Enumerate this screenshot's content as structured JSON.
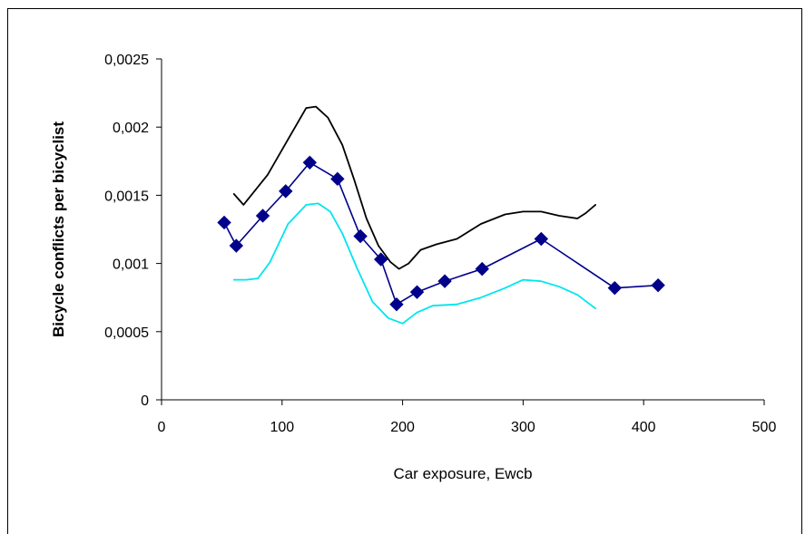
{
  "chart_data": {
    "type": "line",
    "xlabel": "Car exposure, Ewcb",
    "ylabel": "Bicycle conflicts per bicyclist",
    "xlim": [
      0,
      500
    ],
    "ylim": [
      0,
      0.0025
    ],
    "xticks": [
      0,
      100,
      200,
      300,
      400,
      500
    ],
    "xtick_labels": [
      "0",
      "100",
      "200",
      "300",
      "400",
      "500"
    ],
    "yticks": [
      0,
      0.0005,
      0.001,
      0.0015,
      0.002,
      0.0025
    ],
    "ytick_labels": [
      "0",
      "0,0005",
      "0,001",
      "0,0015",
      "0,002",
      "0,0025"
    ],
    "grid": false,
    "legend": false,
    "series": [
      {
        "color": "#000000",
        "marker": "none",
        "x": [
          60,
          68,
          88,
          105,
          120,
          128,
          138,
          150,
          160,
          170,
          180,
          190,
          197,
          205,
          215,
          228,
          245,
          265,
          285,
          300,
          315,
          330,
          345,
          352,
          360
        ],
        "y": [
          0.00151,
          0.00143,
          0.00165,
          0.00191,
          0.00214,
          0.00215,
          0.00207,
          0.00187,
          0.00161,
          0.00133,
          0.00113,
          0.00101,
          0.00096,
          0.001,
          0.0011,
          0.00114,
          0.00118,
          0.00129,
          0.00136,
          0.00138,
          0.00138,
          0.00135,
          0.00133,
          0.00137,
          0.00143
        ]
      },
      {
        "color": "#00008b",
        "marker": "diamond",
        "x": [
          52,
          62,
          84,
          103,
          123,
          146,
          165,
          182,
          195,
          212,
          235,
          266,
          315,
          376,
          412
        ],
        "y": [
          0.0013,
          0.00113,
          0.00135,
          0.00153,
          0.00174,
          0.00162,
          0.0012,
          0.00103,
          0.0007,
          0.00079,
          0.00087,
          0.00096,
          0.00118,
          0.00082,
          0.00084
        ]
      },
      {
        "color": "#00e5ee",
        "marker": "none",
        "x": [
          60,
          70,
          80,
          90,
          105,
          120,
          130,
          140,
          150,
          162,
          175,
          188,
          200,
          212,
          225,
          245,
          265,
          285,
          300,
          315,
          330,
          345,
          360
        ],
        "y": [
          0.00088,
          0.00088,
          0.00089,
          0.00101,
          0.00129,
          0.00143,
          0.00144,
          0.00138,
          0.00122,
          0.00097,
          0.00072,
          0.0006,
          0.00056,
          0.00064,
          0.00069,
          0.0007,
          0.00075,
          0.00082,
          0.00088,
          0.00087,
          0.00083,
          0.00077,
          0.00067
        ]
      }
    ]
  }
}
